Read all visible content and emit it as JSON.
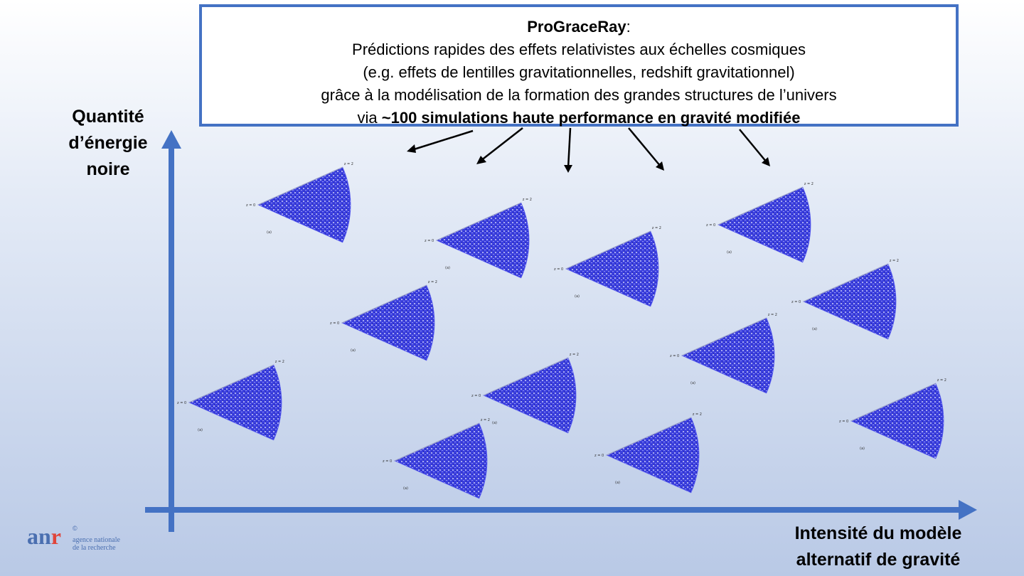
{
  "header": {
    "title": "ProGraceRay",
    "title_suffix": ":",
    "line1": "Prédictions rapides des effets relativistes aux échelles cosmiques",
    "line2": "(e.g. effets de lentilles gravitationnelles, redshift gravitationnel)",
    "line3": "grâce à la modélisation de la formation des grandes structures de l’univers",
    "line4_prefix": "via ",
    "line4_bold": "~100 simulations haute performance en gravité modifiée"
  },
  "axes": {
    "y_label_lines": [
      "Quantité",
      "d’énergie",
      "noire"
    ],
    "x_label_lines": [
      "Intensité du modèle",
      "alternatif de gravité"
    ]
  },
  "wedge_labels": {
    "inner": "z = 0",
    "outer": "z = 2",
    "bottom": "(a)"
  },
  "logo": {
    "mark_a": "a",
    "mark_n": "n",
    "mark_r": "r",
    "copyright": "©",
    "line1": "agence nationale",
    "line2": "de la recherche"
  },
  "colors": {
    "axis": "#4472c4",
    "box_border": "#4472c4",
    "wedge_fill": "#3a3fe6",
    "arrow": "#000000"
  }
}
